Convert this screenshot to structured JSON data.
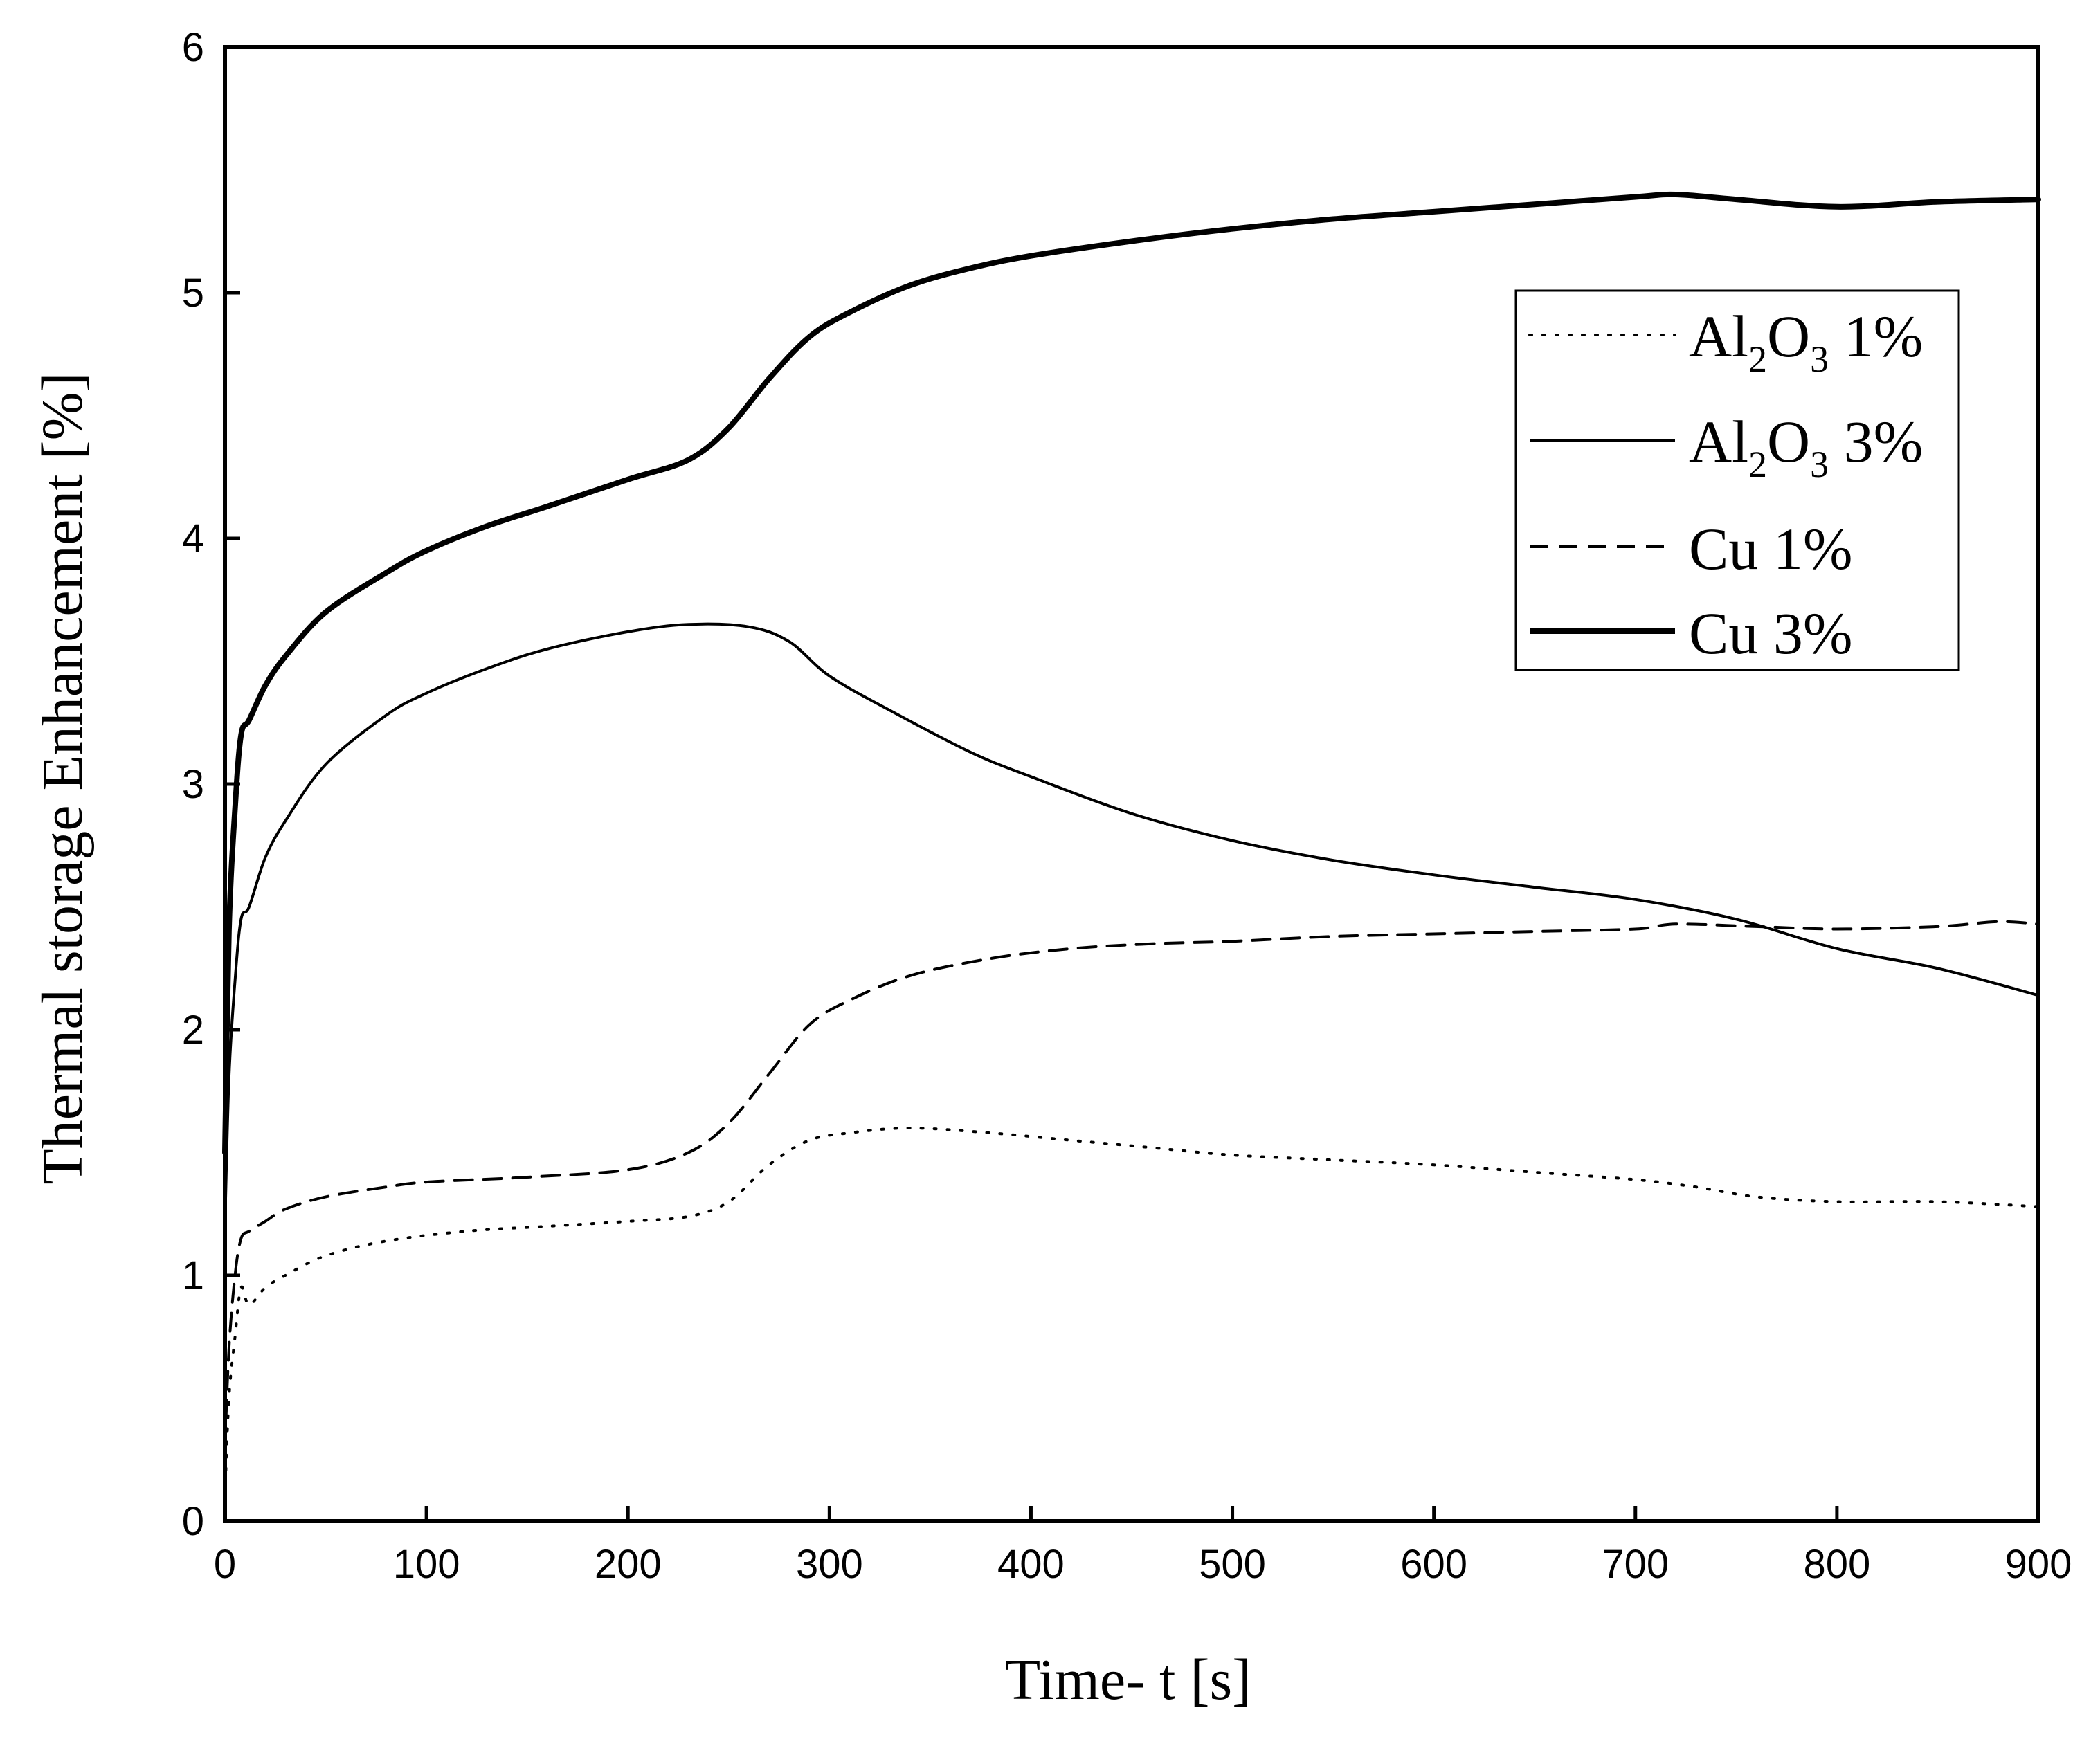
{
  "chart_data": {
    "type": "line",
    "title": "",
    "xlabel": "Time- t [s]",
    "ylabel": "Thermal storage Enhancement [%]",
    "xlim": [
      0,
      900
    ],
    "ylim": [
      0,
      6
    ],
    "xticks": [
      "0",
      "100",
      "200",
      "300",
      "400",
      "500",
      "600",
      "700",
      "800",
      "900"
    ],
    "yticks": [
      "0",
      "1",
      "2",
      "3",
      "4",
      "5",
      "6"
    ],
    "grid": false,
    "legend_position": "top-right",
    "series": [
      {
        "name": "Al2O3 1%",
        "legend_main": "Al",
        "legend_sub1": "2",
        "legend_mid": "O",
        "legend_sub2": "3",
        "legend_tail": " 1%",
        "style": "dotted",
        "x": [
          0,
          2,
          5,
          8,
          12,
          20,
          30,
          50,
          80,
          120,
          160,
          200,
          230,
          250,
          270,
          290,
          310,
          340,
          380,
          420,
          460,
          500,
          550,
          600,
          650,
          700,
          730,
          760,
          800,
          850,
          900
        ],
        "y": [
          0.1,
          0.5,
          0.75,
          0.95,
          0.88,
          0.95,
          1.0,
          1.08,
          1.14,
          1.18,
          1.2,
          1.22,
          1.24,
          1.3,
          1.45,
          1.55,
          1.58,
          1.6,
          1.58,
          1.55,
          1.52,
          1.49,
          1.47,
          1.45,
          1.42,
          1.39,
          1.36,
          1.32,
          1.3,
          1.3,
          1.28
        ]
      },
      {
        "name": "Al2O3 3%",
        "legend_main": "Al",
        "legend_sub1": "2",
        "legend_mid": "O",
        "legend_sub2": "3",
        "legend_tail": " 3%",
        "style": "solid-thin",
        "x": [
          0,
          2,
          5,
          8,
          12,
          20,
          30,
          50,
          80,
          100,
          130,
          160,
          200,
          230,
          260,
          280,
          300,
          330,
          370,
          400,
          450,
          500,
          550,
          600,
          650,
          700,
          750,
          800,
          850,
          900
        ],
        "y": [
          1.2,
          1.8,
          2.2,
          2.45,
          2.5,
          2.7,
          2.85,
          3.08,
          3.28,
          3.37,
          3.47,
          3.55,
          3.62,
          3.65,
          3.64,
          3.58,
          3.44,
          3.3,
          3.13,
          3.03,
          2.88,
          2.77,
          2.69,
          2.63,
          2.58,
          2.53,
          2.45,
          2.33,
          2.25,
          2.14
        ]
      },
      {
        "name": "Cu 1%",
        "legend_label": "Cu 1%",
        "style": "dashed",
        "x": [
          0,
          2,
          5,
          8,
          12,
          20,
          30,
          50,
          80,
          100,
          150,
          200,
          230,
          250,
          270,
          290,
          310,
          340,
          380,
          420,
          460,
          500,
          550,
          600,
          650,
          700,
          720,
          760,
          800,
          850,
          880,
          900
        ],
        "y": [
          0.3,
          0.7,
          1.0,
          1.15,
          1.18,
          1.22,
          1.27,
          1.32,
          1.36,
          1.38,
          1.4,
          1.43,
          1.5,
          1.62,
          1.82,
          2.02,
          2.12,
          2.22,
          2.29,
          2.33,
          2.35,
          2.36,
          2.38,
          2.39,
          2.4,
          2.41,
          2.43,
          2.42,
          2.41,
          2.42,
          2.44,
          2.43
        ]
      },
      {
        "name": "Cu 3%",
        "legend_label": "Cu 3%",
        "style": "solid-thick",
        "x": [
          0,
          2,
          5,
          8,
          12,
          20,
          30,
          50,
          80,
          100,
          130,
          160,
          200,
          230,
          250,
          270,
          290,
          310,
          340,
          370,
          400,
          450,
          500,
          550,
          600,
          650,
          700,
          720,
          750,
          800,
          850,
          900
        ],
        "y": [
          1.5,
          2.4,
          2.9,
          3.2,
          3.26,
          3.4,
          3.52,
          3.7,
          3.86,
          3.95,
          4.05,
          4.13,
          4.24,
          4.32,
          4.45,
          4.65,
          4.82,
          4.92,
          5.03,
          5.1,
          5.15,
          5.21,
          5.26,
          5.3,
          5.33,
          5.36,
          5.39,
          5.4,
          5.38,
          5.35,
          5.37,
          5.38
        ]
      }
    ]
  }
}
